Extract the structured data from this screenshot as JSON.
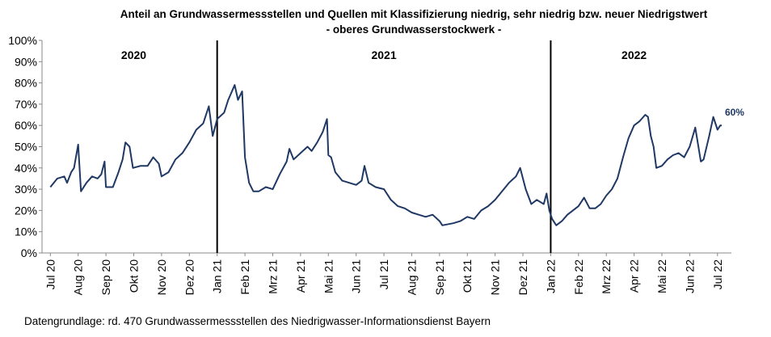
{
  "chart_data": {
    "type": "line",
    "title": "Anteil an Grundwassermessstellen und Quellen mit Klassifizierung niedrig, sehr niedrig bzw. neuer Niedrigstwert",
    "subtitle": "- oberes Grundwasserstockwerk -",
    "source": "Datengrundlage:  rd. 470 Grundwassermessstellen  des Niedrigwasser-Informationsdienst  Bayern",
    "grid": false,
    "xlim": [
      -0.3,
      24.5
    ],
    "ylim": [
      0,
      100
    ],
    "xticks": [
      {
        "value": 0,
        "label": "Jul 20"
      },
      {
        "value": 1,
        "label": "Aug 20"
      },
      {
        "value": 2,
        "label": "Sep 20"
      },
      {
        "value": 3,
        "label": "Okt 20"
      },
      {
        "value": 4,
        "label": "Nov 20"
      },
      {
        "value": 5,
        "label": "Dez 20"
      },
      {
        "value": 6,
        "label": "Jan 21"
      },
      {
        "value": 7,
        "label": "Feb 21"
      },
      {
        "value": 8,
        "label": "Mrz 21"
      },
      {
        "value": 9,
        "label": "Apr 21"
      },
      {
        "value": 10,
        "label": "Mai 21"
      },
      {
        "value": 11,
        "label": "Jun 21"
      },
      {
        "value": 12,
        "label": "Jul 21"
      },
      {
        "value": 13,
        "label": "Aug 21"
      },
      {
        "value": 14,
        "label": "Sep 21"
      },
      {
        "value": 15,
        "label": "Okt 21"
      },
      {
        "value": 16,
        "label": "Nov 21"
      },
      {
        "value": 17,
        "label": "Dez 21"
      },
      {
        "value": 18,
        "label": "Jan 22"
      },
      {
        "value": 19,
        "label": "Feb 22"
      },
      {
        "value": 20,
        "label": "Mrz 22"
      },
      {
        "value": 21,
        "label": "Apr 22"
      },
      {
        "value": 22,
        "label": "Mai 22"
      },
      {
        "value": 23,
        "label": "Jun 22"
      },
      {
        "value": 24,
        "label": "Jul 22"
      }
    ],
    "yticks": [
      {
        "value": 0,
        "label": "0%"
      },
      {
        "value": 10,
        "label": "10%"
      },
      {
        "value": 20,
        "label": "20%"
      },
      {
        "value": 30,
        "label": "30%"
      },
      {
        "value": 40,
        "label": "40%"
      },
      {
        "value": 50,
        "label": "50%"
      },
      {
        "value": 60,
        "label": "60%"
      },
      {
        "value": 70,
        "label": "70%"
      },
      {
        "value": 80,
        "label": "80%"
      },
      {
        "value": 90,
        "label": "90%"
      },
      {
        "value": 100,
        "label": "100%"
      }
    ],
    "year_dividers": [
      6,
      18
    ],
    "year_labels": [
      {
        "text": "2020",
        "x": 3
      },
      {
        "text": "2021",
        "x": 12
      },
      {
        "text": "2022",
        "x": 21
      }
    ],
    "end_label": {
      "text": "60%",
      "value": 60
    },
    "series": [
      {
        "name": "Anteil",
        "color": "#1f3864",
        "x": [
          0,
          0.25,
          0.5,
          0.6,
          0.75,
          0.85,
          1.0,
          1.1,
          1.3,
          1.5,
          1.7,
          1.83,
          1.95,
          2.0,
          2.25,
          2.45,
          2.6,
          2.7,
          2.85,
          2.97,
          3.25,
          3.5,
          3.7,
          3.9,
          4.0,
          4.25,
          4.5,
          4.75,
          5.0,
          5.25,
          5.5,
          5.7,
          5.84,
          6.0,
          6.25,
          6.4,
          6.63,
          6.75,
          6.9,
          7.0,
          7.15,
          7.3,
          7.5,
          7.75,
          8.0,
          8.25,
          8.5,
          8.6,
          8.75,
          9.0,
          9.25,
          9.4,
          9.6,
          9.8,
          9.95,
          10.0,
          10.1,
          10.25,
          10.5,
          10.75,
          11.0,
          11.2,
          11.3,
          11.45,
          11.7,
          12.0,
          12.25,
          12.5,
          12.75,
          13.0,
          13.25,
          13.5,
          13.75,
          14.0,
          14.1,
          14.5,
          14.75,
          15.0,
          15.25,
          15.5,
          15.75,
          16.0,
          16.25,
          16.5,
          16.75,
          16.9,
          17.1,
          17.3,
          17.5,
          17.75,
          17.85,
          17.95,
          18.05,
          18.2,
          18.4,
          18.6,
          18.8,
          19.0,
          19.2,
          19.4,
          19.6,
          19.8,
          20.0,
          20.2,
          20.4,
          20.6,
          20.8,
          21.0,
          21.2,
          21.4,
          21.5,
          21.6,
          21.7,
          21.8,
          22.0,
          22.2,
          22.4,
          22.6,
          22.8,
          23.0,
          23.2,
          23.4,
          23.5,
          23.7,
          23.85,
          24.0,
          24.1,
          24.15
        ],
        "values": [
          31,
          35,
          36,
          33,
          38,
          40,
          51,
          29,
          33,
          36,
          35,
          37,
          43,
          31,
          31,
          38,
          44,
          52,
          50,
          40,
          41,
          41,
          45,
          42,
          36,
          38,
          44,
          47,
          52,
          58,
          61,
          69,
          55,
          63,
          66,
          72,
          79,
          72,
          76,
          45,
          33,
          29,
          29,
          31,
          30,
          37,
          43,
          49,
          44,
          47,
          50,
          48,
          52,
          57,
          63,
          46,
          45,
          38,
          34,
          33,
          32,
          34,
          41,
          33,
          31,
          30,
          25,
          22,
          21,
          19,
          18,
          17,
          18,
          15,
          13,
          14,
          15,
          17,
          16,
          20,
          22,
          25,
          29,
          33,
          36,
          40,
          30,
          23,
          25,
          23,
          28,
          20,
          16,
          13,
          15,
          18,
          20,
          22,
          26,
          21,
          21,
          23,
          27,
          30,
          35,
          45,
          54,
          60,
          62,
          65,
          64,
          55,
          50,
          40,
          41,
          44,
          46,
          47,
          45,
          50,
          59,
          43,
          44,
          55,
          64,
          58,
          60,
          60
        ]
      }
    ]
  }
}
